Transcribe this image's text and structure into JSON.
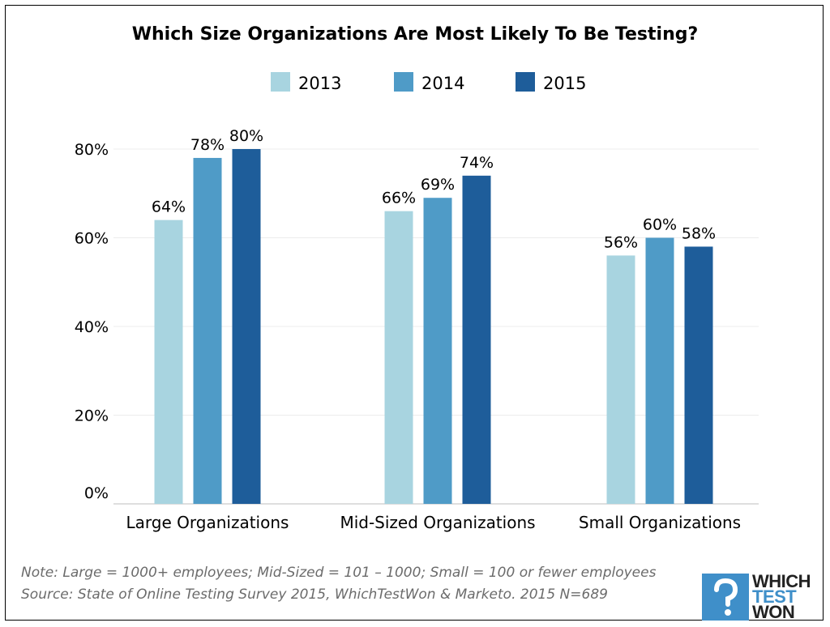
{
  "chart_data": {
    "type": "bar",
    "title": "Which Size Organizations Are Most Likely To Be Testing?",
    "categories": [
      "Large Organizations",
      "Mid-Sized Organizations",
      "Small Organizations"
    ],
    "series": [
      {
        "name": "2013",
        "color": "#a8d4e0",
        "values": [
          64,
          66,
          56
        ],
        "labels": [
          "64%",
          "66%",
          "56%"
        ]
      },
      {
        "name": "2014",
        "color": "#4f9bc7",
        "values": [
          78,
          69,
          60
        ],
        "labels": [
          "78%",
          "69%",
          "60%"
        ]
      },
      {
        "name": "2015",
        "color": "#1e5d9a",
        "values": [
          80,
          74,
          58
        ],
        "labels": [
          "80%",
          "74%",
          "58%"
        ]
      }
    ],
    "ylim": [
      0,
      80
    ],
    "yticks": [
      0,
      20,
      40,
      60,
      80
    ],
    "ytick_labels": [
      "0%",
      "20%",
      "40%",
      "60%",
      "80%"
    ],
    "xlabel": "",
    "ylabel": "",
    "grid": true,
    "legend_position": "top-center"
  },
  "notes": {
    "line1": "Note: Large = 1000+ employees; Mid-Sized = 101 – 1000; Small = 100 or fewer employees",
    "line2": "Source: State of Online Testing Survey 2015, WhichTestWon & Marketo.   2015 N=689"
  },
  "logo": {
    "line1": "WHICH",
    "line2": "TEST",
    "line3": "WON",
    "accent_color": "#3f8fc9"
  }
}
